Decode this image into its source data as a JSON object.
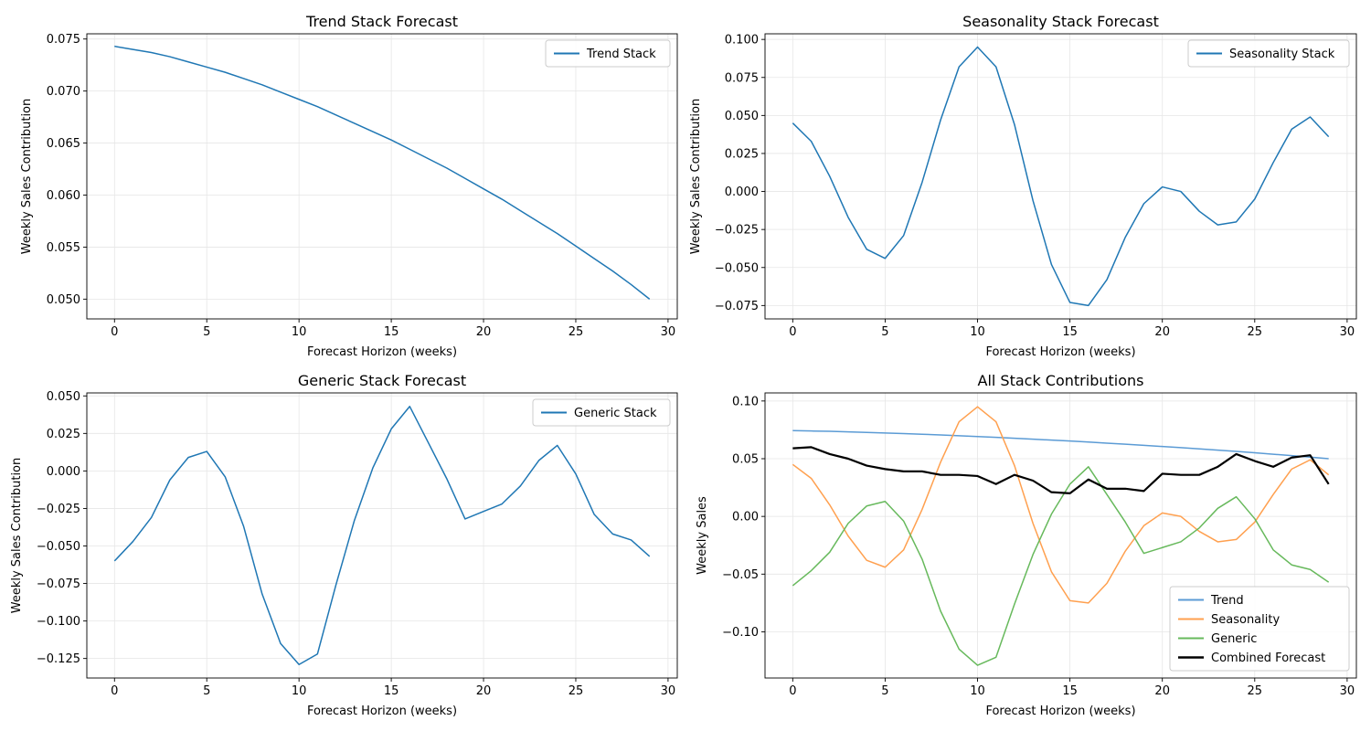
{
  "colors": {
    "trend": "#1f77b4",
    "trend_light": "#5b9bd5",
    "seasonality": "#ff7f0e",
    "generic": "#2ca02c",
    "combined": "#000000",
    "grid": "#e6e6e6"
  },
  "chart_data": [
    {
      "type": "line",
      "title": "Trend Stack Forecast",
      "xlabel": "Forecast Horizon (weeks)",
      "ylabel": "Weekly Sales Contribution",
      "xlim": [
        -1.5,
        30.5
      ],
      "ylim": [
        0.0481,
        0.0755
      ],
      "xticks": [
        0,
        5,
        10,
        15,
        20,
        25,
        30
      ],
      "yticks": [
        0.05,
        0.055,
        0.06,
        0.065,
        0.07,
        0.075
      ],
      "ytick_labels": [
        "0.050",
        "0.055",
        "0.060",
        "0.065",
        "0.070",
        "0.075"
      ],
      "grid": true,
      "legend": "top-right",
      "series": [
        {
          "name": "Trend Stack",
          "color": "#1f77b4",
          "values": [
            0.0743,
            0.074,
            0.0737,
            0.0733,
            0.0728,
            0.0723,
            0.0718,
            0.0712,
            0.0706,
            0.0699,
            0.0692,
            0.0685,
            0.0677,
            0.0669,
            0.0661,
            0.0653,
            0.0644,
            0.0635,
            0.0626,
            0.0616,
            0.0606,
            0.0596,
            0.0585,
            0.0574,
            0.0563,
            0.0551,
            0.0539,
            0.0527,
            0.0514,
            0.05
          ]
        }
      ]
    },
    {
      "type": "line",
      "title": "Seasonality Stack Forecast",
      "xlabel": "Forecast Horizon (weeks)",
      "ylabel": "Weekly Sales Contribution",
      "xlim": [
        -1.5,
        30.5
      ],
      "ylim": [
        -0.0838,
        0.1037
      ],
      "xticks": [
        0,
        5,
        10,
        15,
        20,
        25,
        30
      ],
      "yticks": [
        -0.075,
        -0.05,
        -0.025,
        0,
        0.025,
        0.05,
        0.075,
        0.1
      ],
      "ytick_labels": [
        "−0.075",
        "−0.050",
        "−0.025",
        "0.000",
        "0.025",
        "0.050",
        "0.075",
        "0.100"
      ],
      "grid": true,
      "legend": "top-right",
      "series": [
        {
          "name": "Seasonality Stack",
          "color": "#1f77b4",
          "values": [
            0.045,
            0.033,
            0.01,
            -0.017,
            -0.038,
            -0.044,
            -0.029,
            0.006,
            0.047,
            0.082,
            0.095,
            0.082,
            0.044,
            -0.006,
            -0.048,
            -0.073,
            -0.075,
            -0.058,
            -0.03,
            -0.008,
            0.003,
            0.0,
            -0.013,
            -0.022,
            -0.02,
            -0.005,
            0.019,
            0.041,
            0.049,
            0.036
          ]
        }
      ]
    },
    {
      "type": "line",
      "title": "Generic Stack Forecast",
      "xlabel": "Forecast Horizon (weeks)",
      "ylabel": "Weekly Sales Contribution",
      "xlim": [
        -1.5,
        30.5
      ],
      "ylim": [
        -0.138,
        0.052
      ],
      "xticks": [
        0,
        5,
        10,
        15,
        20,
        25,
        30
      ],
      "yticks": [
        -0.125,
        -0.1,
        -0.075,
        -0.05,
        -0.025,
        0,
        0.025,
        0.05
      ],
      "ytick_labels": [
        "−0.125",
        "−0.100",
        "−0.075",
        "−0.050",
        "−0.025",
        "0.000",
        "0.025",
        "0.050"
      ],
      "grid": true,
      "legend": "top-right",
      "series": [
        {
          "name": "Generic Stack",
          "color": "#1f77b4",
          "values": [
            -0.06,
            -0.047,
            -0.031,
            -0.006,
            0.009,
            0.013,
            -0.004,
            -0.037,
            -0.082,
            -0.115,
            -0.129,
            -0.122,
            -0.076,
            -0.033,
            0.002,
            0.028,
            0.043,
            0.019,
            -0.005,
            -0.032,
            -0.027,
            -0.022,
            -0.01,
            0.007,
            0.017,
            -0.002,
            -0.029,
            -0.042,
            -0.046,
            -0.057
          ]
        }
      ]
    },
    {
      "type": "line",
      "title": "All Stack Contributions",
      "xlabel": "Forecast Horizon (weeks)",
      "ylabel": "Weekly Sales",
      "xlim": [
        -1.5,
        30.5
      ],
      "ylim": [
        -0.14,
        0.107
      ],
      "xticks": [
        0,
        5,
        10,
        15,
        20,
        25,
        30
      ],
      "yticks": [
        -0.1,
        -0.05,
        0,
        0.05,
        0.1
      ],
      "ytick_labels": [
        "−0.10",
        "−0.05",
        "0.00",
        "0.05",
        "0.10"
      ],
      "grid": true,
      "legend": "bottom-right",
      "series": [
        {
          "name": "Trend",
          "color": "#5b9bd5",
          "values": [
            0.0743,
            0.074,
            0.0737,
            0.0733,
            0.0728,
            0.0723,
            0.0718,
            0.0712,
            0.0706,
            0.0699,
            0.0692,
            0.0685,
            0.0677,
            0.0669,
            0.0661,
            0.0653,
            0.0644,
            0.0635,
            0.0626,
            0.0616,
            0.0606,
            0.0596,
            0.0585,
            0.0574,
            0.0563,
            0.0551,
            0.0539,
            0.0527,
            0.0514,
            0.05
          ]
        },
        {
          "name": "Seasonality",
          "color": "#ffa04f",
          "values": [
            0.045,
            0.033,
            0.01,
            -0.017,
            -0.038,
            -0.044,
            -0.029,
            0.006,
            0.047,
            0.082,
            0.095,
            0.082,
            0.044,
            -0.006,
            -0.048,
            -0.073,
            -0.075,
            -0.058,
            -0.03,
            -0.008,
            0.003,
            0.0,
            -0.013,
            -0.022,
            -0.02,
            -0.005,
            0.019,
            0.041,
            0.049,
            0.036
          ]
        },
        {
          "name": "Generic",
          "color": "#67b95c",
          "values": [
            -0.06,
            -0.047,
            -0.031,
            -0.006,
            0.009,
            0.013,
            -0.004,
            -0.037,
            -0.082,
            -0.115,
            -0.129,
            -0.122,
            -0.076,
            -0.033,
            0.002,
            0.028,
            0.043,
            0.019,
            -0.005,
            -0.032,
            -0.027,
            -0.022,
            -0.01,
            0.007,
            0.017,
            -0.002,
            -0.029,
            -0.042,
            -0.046,
            -0.057
          ]
        },
        {
          "name": "Combined Forecast",
          "color": "#000000",
          "values": [
            0.059,
            0.06,
            0.054,
            0.05,
            0.044,
            0.041,
            0.039,
            0.039,
            0.036,
            0.036,
            0.035,
            0.028,
            0.036,
            0.031,
            0.021,
            0.02,
            0.032,
            0.024,
            0.024,
            0.022,
            0.037,
            0.036,
            0.036,
            0.043,
            0.054,
            0.048,
            0.043,
            0.051,
            0.053,
            0.028
          ]
        }
      ]
    }
  ]
}
